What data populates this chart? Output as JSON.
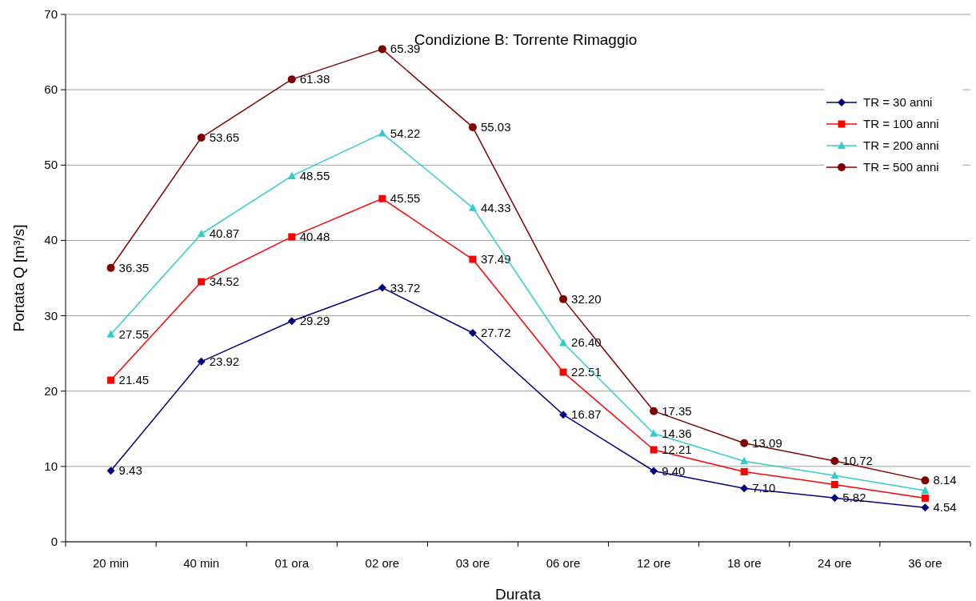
{
  "chart_data": {
    "type": "line",
    "title": "Condizione B: Torrente Rimaggio",
    "xlabel": "Durata",
    "ylabel": "Portata Q [m³/s]",
    "categories": [
      "20 min",
      "40 min",
      "01 ora",
      "02 ore",
      "03 ore",
      "06 ore",
      "12 ore",
      "18 ore",
      "24 ore",
      "36 ore"
    ],
    "ylim": [
      0,
      70
    ],
    "yticks": [
      0,
      10,
      20,
      30,
      40,
      50,
      60,
      70
    ],
    "grid": "y",
    "legend": "top right",
    "series": [
      {
        "name": "TR = 30 anni",
        "color": "#000080",
        "marker": "diamond",
        "values": [
          9.43,
          23.92,
          29.29,
          33.72,
          27.72,
          16.87,
          9.4,
          7.1,
          5.82,
          4.54
        ],
        "value_labels": [
          "9.43",
          "23.92",
          "29.29",
          "33.72",
          "27.72",
          "16.87",
          "9.40",
          "7.10",
          "5.82",
          "4.54"
        ]
      },
      {
        "name": "TR = 100 anni",
        "color": "#ff0000",
        "marker": "square",
        "values": [
          21.45,
          34.52,
          40.48,
          45.55,
          37.49,
          22.51,
          12.21,
          9.3,
          7.6,
          5.8
        ],
        "value_labels": [
          "21.45",
          "34.52",
          "40.48",
          "45.55",
          "37.49",
          "22.51",
          "12.21",
          null,
          null,
          null
        ]
      },
      {
        "name": "TR = 200 anni",
        "color": "#33cccc",
        "marker": "triangle",
        "values": [
          27.55,
          40.87,
          48.55,
          54.22,
          44.33,
          26.4,
          14.36,
          10.7,
          8.8,
          6.8
        ],
        "value_labels": [
          "27.55",
          "40.87",
          "48.55",
          "54.22",
          "44.33",
          "26.40",
          "14.36",
          null,
          null,
          null
        ]
      },
      {
        "name": "TR = 500 anni",
        "color": "#800000",
        "marker": "circle",
        "values": [
          36.35,
          53.65,
          61.38,
          65.39,
          55.03,
          32.2,
          17.35,
          13.09,
          10.72,
          8.14
        ],
        "value_labels": [
          "36.35",
          "53.65",
          "61.38",
          "65.39",
          "55.03",
          "32.20",
          "17.35",
          "13.09",
          "10.72",
          "8.14"
        ]
      }
    ]
  }
}
